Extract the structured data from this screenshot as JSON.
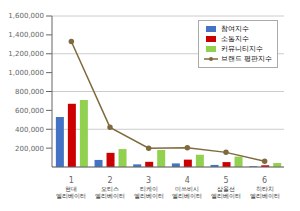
{
  "chart_data": {
    "type": "bar",
    "categories": [
      "1",
      "2",
      "3",
      "4",
      "5",
      "6"
    ],
    "annotations": [
      "현대 엘리베이터",
      "오티스 엘리베이터",
      "티케이 엘리베이터",
      "미쓰비시 엘리베이터",
      "삼올선 엘리베이터",
      "히타치 엘리베이터"
    ],
    "series": [
      {
        "name": "참여지수",
        "type": "bar",
        "color": "#4472c4",
        "values": [
          530000,
          75000,
          28000,
          38000,
          22000,
          8000
        ]
      },
      {
        "name": "소통지수",
        "type": "bar",
        "color": "#cc0000",
        "values": [
          670000,
          150000,
          55000,
          78000,
          52000,
          18000
        ]
      },
      {
        "name": "커뮤니티지수",
        "type": "bar",
        "color": "#92d050",
        "values": [
          710000,
          190000,
          180000,
          130000,
          110000,
          42000
        ]
      },
      {
        "name": "브랜드 평판지수",
        "type": "line",
        "color": "#7f6a3e",
        "marker": "circle",
        "values": [
          1330000,
          420000,
          200000,
          205000,
          155000,
          62000
        ]
      }
    ],
    "ylim": [
      0,
      1600000
    ],
    "yticks": [
      {
        "value": 200000,
        "label": "200,000"
      },
      {
        "value": 400000,
        "label": "400,000"
      },
      {
        "value": 600000,
        "label": "600,000"
      },
      {
        "value": 800000,
        "label": "800,000"
      },
      {
        "value": 1000000,
        "label": "1,000,000"
      },
      {
        "value": 1200000,
        "label": "1,200,000"
      },
      {
        "value": 1400000,
        "label": "1,400,000"
      },
      {
        "value": 1600000,
        "label": "1,600,000"
      }
    ],
    "grid": true,
    "legend": "upper right"
  }
}
